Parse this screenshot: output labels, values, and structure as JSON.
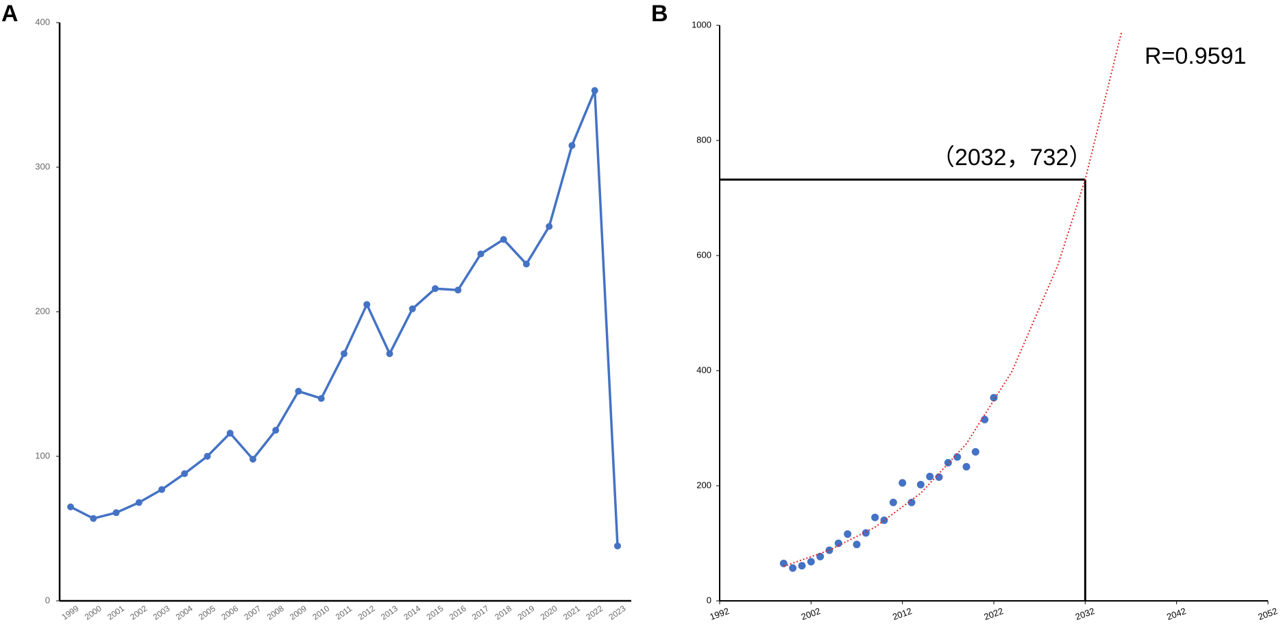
{
  "chart_data": [
    {
      "type": "line",
      "panel_label": "A",
      "categories": [
        "1999",
        "2000",
        "2001",
        "2002",
        "2003",
        "2004",
        "2005",
        "2006",
        "2007",
        "2008",
        "2009",
        "2010",
        "2011",
        "2012",
        "2013",
        "2014",
        "2015",
        "2016",
        "2017",
        "2018",
        "2019",
        "2020",
        "2021",
        "2022",
        "2023"
      ],
      "values": [
        65,
        57,
        61,
        68,
        77,
        88,
        100,
        116,
        98,
        118,
        145,
        140,
        171,
        205,
        171,
        202,
        216,
        215,
        240,
        250,
        233,
        259,
        315,
        353,
        38
      ],
      "color": "#4472c4",
      "ylim": [
        0,
        400
      ],
      "yticks": [
        0,
        100,
        200,
        300,
        400
      ]
    },
    {
      "type": "scatter",
      "panel_label": "B",
      "x": [
        1999,
        2000,
        2001,
        2002,
        2003,
        2004,
        2005,
        2006,
        2007,
        2008,
        2009,
        2010,
        2011,
        2012,
        2013,
        2014,
        2015,
        2016,
        2017,
        2018,
        2019,
        2020,
        2021,
        2022
      ],
      "values": [
        65,
        57,
        61,
        68,
        77,
        88,
        100,
        116,
        98,
        118,
        145,
        140,
        171,
        205,
        171,
        202,
        216,
        215,
        240,
        250,
        233,
        259,
        315,
        353
      ],
      "color": "#4472c4",
      "xlim": [
        1992,
        2052
      ],
      "xticks": [
        1992,
        2002,
        2012,
        2022,
        2032,
        2042,
        2052
      ],
      "ylim": [
        0,
        1000
      ],
      "yticks": [
        0,
        200,
        400,
        600,
        800,
        1000
      ],
      "trend": {
        "x": [
          1999,
          2004,
          2009,
          2014,
          2019,
          2024,
          2029,
          2032,
          2036
        ],
        "values": [
          60,
          88,
          128,
          187,
          273,
          399,
          583,
          732,
          990
        ],
        "color": "#e02020"
      },
      "annotation": {
        "text": "（2032，732）",
        "x": 2032,
        "y": 732
      },
      "r_label": "R=0.9591"
    }
  ]
}
